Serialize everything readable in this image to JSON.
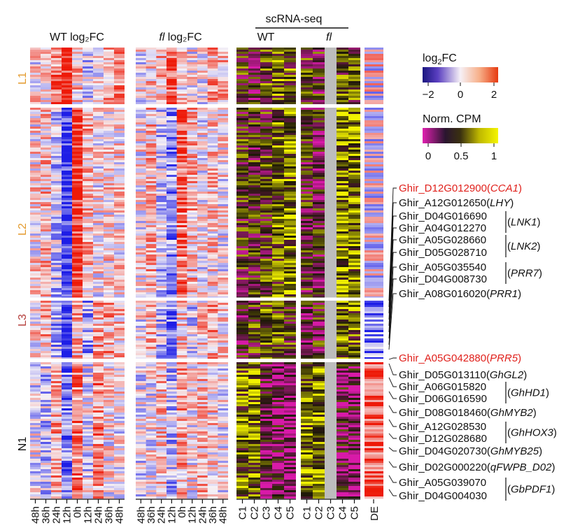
{
  "panels": {
    "wt_title": "WT log₂FC",
    "fl_title_italic": "fl",
    "fl_title_rest": " log₂FC",
    "scrna_title": "scRNA-seq",
    "scrna_wt": "WT",
    "scrna_fl": "fl",
    "de_label": "DE"
  },
  "time_labels": [
    "48h",
    "36h",
    "24h",
    "12h",
    "0h",
    "12h",
    "24h",
    "36h",
    "48h"
  ],
  "cluster_labels": [
    {
      "id": "L1",
      "label": "L1",
      "color": "#e39a2c"
    },
    {
      "id": "L2",
      "label": "L2",
      "color": "#e39a2c"
    },
    {
      "id": "L3",
      "label": "L3",
      "color": "#b5403d"
    },
    {
      "id": "N1",
      "label": "N1",
      "color": "#333333"
    }
  ],
  "scrna_columns": [
    "C1",
    "C2",
    "C3",
    "C4",
    "C5"
  ],
  "legend": {
    "log2fc_title": "log",
    "log2fc_title_sub": "2",
    "log2fc_title_end": "FC",
    "log2fc_ticks": [
      "−2",
      "0",
      "2"
    ],
    "cpm_title": "Norm. CPM",
    "cpm_ticks": [
      "0",
      "0.5",
      "1"
    ]
  },
  "genes": [
    {
      "id": "Ghir_D12G012900",
      "name": "CCA1",
      "highlight": true
    },
    {
      "id": "Ghir_A12G012650",
      "name": "LHY",
      "highlight": false
    },
    {
      "id": "Ghir_D04G016690",
      "name": "",
      "highlight": false
    },
    {
      "id": "Ghir_A04G012270",
      "name": "LNK1",
      "highlight": false
    },
    {
      "id": "Ghir_A05G028660",
      "name": "",
      "highlight": false
    },
    {
      "id": "Ghir_D05G028710",
      "name": "LNK2",
      "highlight": false
    },
    {
      "id": "Ghir_A05G035540",
      "name": "PRR7",
      "highlight": false
    },
    {
      "id": "Ghir_D04G008730",
      "name": "",
      "highlight": false
    },
    {
      "id": "Ghir_A08G016020",
      "name": "PRR1",
      "highlight": false
    },
    {
      "id": "Ghir_A05G042880",
      "name": "PRR5",
      "highlight": true
    },
    {
      "id": "Ghir_D05G013110",
      "name": "GhGL2",
      "highlight": false
    },
    {
      "id": "Ghir_A06G015820",
      "name": "GhHD1",
      "highlight": false
    },
    {
      "id": "Ghir_D06G016590",
      "name": "",
      "highlight": false
    },
    {
      "id": "Ghir_D08G018460",
      "name": "GhMYB2",
      "highlight": false
    },
    {
      "id": "Ghir_A12G028530",
      "name": "GhHOX3",
      "highlight": false
    },
    {
      "id": "Ghir_D12G028680",
      "name": "",
      "highlight": false
    },
    {
      "id": "Ghir_D04G020730",
      "name": "GhMYB25",
      "highlight": false
    },
    {
      "id": "Ghir_D02G000220",
      "name": "qFWPB_D02",
      "highlight": false
    },
    {
      "id": "Ghir_A05G039070",
      "name": "GbPDF1",
      "highlight": false
    },
    {
      "id": "Ghir_D04G004030",
      "name": "",
      "highlight": false
    }
  ],
  "colors": {
    "log2fc_low": "#2222dd",
    "log2fc_mid": "#f8f4f8",
    "log2fc_high": "#ee2200",
    "cpm_low": "#e020b0",
    "cpm_mid": "#221a08",
    "cpm_high": "#f0f000",
    "gap_grey": "#bdbdbd",
    "highlight_red": "#e0201b"
  }
}
